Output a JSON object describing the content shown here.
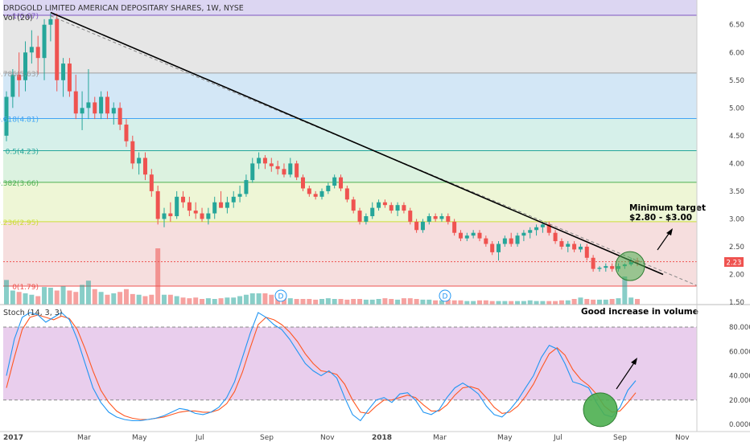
{
  "title": "DRDGOLD LIMITED AMERICAN DEPOSITARY SHARES, 1W, NYSE",
  "volume_label": "Vol (20)",
  "last_price_badge": "2.23",
  "annotations": {
    "target_line1": "Minimum target",
    "target_line2": "$2.80 - $3.00",
    "volume_note": "Good increase in volume"
  },
  "dividend_marker": "D",
  "colors": {
    "up": "#26a69a",
    "down": "#ef5350",
    "trendline": "#000000",
    "stoch_k": "#2196f3",
    "stoch_d": "#ff5722",
    "stoch_band": "#e1bee7",
    "highlight_circle": "#4caf50"
  },
  "chart_data": [
    {
      "type": "candlestick",
      "title": "DRDGOLD LIMITED AMERICAN DEPOSITARY SHARES, 1W, NYSE",
      "y_axis_ticks": [
        "6.50",
        "6.00",
        "5.50",
        "5.00",
        "4.50",
        "4.00",
        "3.50",
        "3.00",
        "2.50",
        "2.00",
        "1.50"
      ],
      "ylim": [
        1.5,
        6.9
      ],
      "x_axis_ticks": [
        "2017",
        "Mar",
        "May",
        "Jul",
        "Sep",
        "Nov",
        "2018",
        "Mar",
        "May",
        "Jul",
        "Sep",
        "Nov"
      ],
      "last_price": 2.23,
      "fibonacci_levels": [
        {
          "label": "1(6.67)",
          "value": 6.67
        },
        {
          "label": "0.786(5.63)",
          "value": 5.63
        },
        {
          "label": "0.618(4.81)",
          "value": 4.81
        },
        {
          "label": "0.5(4.23)",
          "value": 4.23
        },
        {
          "label": "0.382(3.66)",
          "value": 3.66
        },
        {
          "label": "0.236(2.95)",
          "value": 2.95
        },
        {
          "label": "0(1.79)",
          "value": 1.79
        }
      ],
      "candles": [
        [
          4.5,
          5.3,
          4.4,
          5.2
        ],
        [
          5.2,
          5.7,
          5.0,
          5.6
        ],
        [
          5.6,
          6.0,
          5.2,
          5.5
        ],
        [
          5.5,
          6.2,
          5.3,
          6.0
        ],
        [
          6.0,
          6.4,
          5.8,
          6.1
        ],
        [
          6.1,
          6.3,
          5.6,
          5.9
        ],
        [
          5.9,
          6.6,
          5.5,
          6.5
        ],
        [
          6.5,
          6.7,
          6.2,
          6.6
        ],
        [
          6.6,
          6.7,
          5.3,
          5.5
        ],
        [
          5.5,
          5.9,
          5.2,
          5.8
        ],
        [
          5.8,
          5.9,
          5.2,
          5.3
        ],
        [
          5.3,
          5.6,
          4.8,
          4.9
        ],
        [
          4.9,
          5.3,
          4.6,
          5.0
        ],
        [
          5.0,
          5.7,
          4.8,
          5.1
        ],
        [
          5.1,
          5.2,
          4.8,
          4.9
        ],
        [
          4.9,
          5.3,
          4.8,
          5.2
        ],
        [
          5.2,
          5.3,
          4.8,
          4.9
        ],
        [
          4.9,
          5.1,
          4.7,
          5.0
        ],
        [
          5.0,
          5.1,
          4.6,
          4.7
        ],
        [
          4.7,
          4.8,
          4.3,
          4.4
        ],
        [
          4.4,
          4.5,
          3.9,
          4.0
        ],
        [
          4.0,
          4.2,
          3.8,
          4.1
        ],
        [
          4.1,
          4.2,
          3.7,
          3.8
        ],
        [
          3.8,
          3.9,
          3.4,
          3.5
        ],
        [
          3.5,
          3.6,
          2.9,
          3.0
        ],
        [
          3.0,
          3.2,
          2.85,
          3.1
        ],
        [
          3.1,
          3.3,
          2.95,
          3.05
        ],
        [
          3.05,
          3.5,
          3.0,
          3.4
        ],
        [
          3.4,
          3.5,
          3.2,
          3.3
        ],
        [
          3.3,
          3.4,
          3.05,
          3.15
        ],
        [
          3.15,
          3.3,
          3.0,
          3.1
        ],
        [
          3.1,
          3.2,
          2.95,
          3.0
        ],
        [
          3.0,
          3.2,
          2.9,
          3.1
        ],
        [
          3.1,
          3.4,
          3.0,
          3.3
        ],
        [
          3.3,
          3.5,
          3.2,
          3.2
        ],
        [
          3.2,
          3.4,
          3.1,
          3.3
        ],
        [
          3.3,
          3.5,
          3.2,
          3.4
        ],
        [
          3.4,
          3.6,
          3.3,
          3.45
        ],
        [
          3.45,
          3.8,
          3.4,
          3.7
        ],
        [
          3.7,
          4.1,
          3.65,
          4.0
        ],
        [
          4.0,
          4.2,
          3.9,
          4.1
        ],
        [
          4.1,
          4.15,
          3.9,
          4.0
        ],
        [
          4.0,
          4.1,
          3.85,
          3.95
        ],
        [
          3.95,
          4.05,
          3.8,
          3.9
        ],
        [
          3.9,
          4.0,
          3.75,
          3.8
        ],
        [
          3.8,
          4.1,
          3.75,
          4.0
        ],
        [
          4.0,
          4.05,
          3.7,
          3.75
        ],
        [
          3.75,
          3.8,
          3.5,
          3.55
        ],
        [
          3.55,
          3.6,
          3.4,
          3.45
        ],
        [
          3.45,
          3.5,
          3.35,
          3.4
        ],
        [
          3.4,
          3.55,
          3.35,
          3.5
        ],
        [
          3.5,
          3.65,
          3.45,
          3.6
        ],
        [
          3.6,
          3.8,
          3.55,
          3.75
        ],
        [
          3.75,
          3.8,
          3.5,
          3.55
        ],
        [
          3.55,
          3.6,
          3.3,
          3.35
        ],
        [
          3.35,
          3.4,
          3.1,
          3.15
        ],
        [
          3.15,
          3.2,
          2.9,
          2.95
        ],
        [
          2.95,
          3.1,
          2.9,
          3.05
        ],
        [
          3.05,
          3.3,
          3.0,
          3.2
        ],
        [
          3.2,
          3.35,
          3.15,
          3.3
        ],
        [
          3.3,
          3.35,
          3.2,
          3.25
        ],
        [
          3.25,
          3.3,
          3.1,
          3.15
        ],
        [
          3.15,
          3.3,
          3.05,
          3.25
        ],
        [
          3.25,
          3.3,
          3.1,
          3.15
        ],
        [
          3.15,
          3.2,
          2.9,
          2.95
        ],
        [
          2.95,
          3.0,
          2.75,
          2.8
        ],
        [
          2.8,
          3.0,
          2.75,
          2.95
        ],
        [
          2.95,
          3.1,
          2.9,
          3.05
        ],
        [
          3.05,
          3.1,
          2.95,
          3.0
        ],
        [
          3.0,
          3.1,
          2.95,
          3.05
        ],
        [
          3.05,
          3.1,
          2.9,
          2.95
        ],
        [
          2.95,
          3.0,
          2.7,
          2.75
        ],
        [
          2.75,
          2.8,
          2.6,
          2.65
        ],
        [
          2.65,
          2.75,
          2.6,
          2.7
        ],
        [
          2.7,
          2.8,
          2.65,
          2.75
        ],
        [
          2.75,
          2.8,
          2.6,
          2.65
        ],
        [
          2.65,
          2.7,
          2.5,
          2.55
        ],
        [
          2.55,
          2.6,
          2.35,
          2.4
        ],
        [
          2.4,
          2.6,
          2.25,
          2.55
        ],
        [
          2.55,
          2.7,
          2.5,
          2.65
        ],
        [
          2.65,
          2.75,
          2.5,
          2.55
        ],
        [
          2.55,
          2.75,
          2.5,
          2.7
        ],
        [
          2.7,
          2.8,
          2.6,
          2.75
        ],
        [
          2.75,
          2.85,
          2.65,
          2.8
        ],
        [
          2.8,
          2.9,
          2.7,
          2.85
        ],
        [
          2.85,
          2.95,
          2.75,
          2.9
        ],
        [
          2.9,
          2.95,
          2.7,
          2.75
        ],
        [
          2.75,
          2.8,
          2.55,
          2.6
        ],
        [
          2.6,
          2.65,
          2.45,
          2.5
        ],
        [
          2.5,
          2.6,
          2.4,
          2.55
        ],
        [
          2.55,
          2.6,
          2.4,
          2.45
        ],
        [
          2.45,
          2.55,
          2.4,
          2.5
        ],
        [
          2.5,
          2.55,
          2.25,
          2.3
        ],
        [
          2.3,
          2.35,
          2.05,
          2.1
        ],
        [
          2.1,
          2.15,
          2.05,
          2.12
        ],
        [
          2.12,
          2.2,
          2.05,
          2.15
        ],
        [
          2.15,
          2.2,
          2.05,
          2.1
        ],
        [
          2.1,
          2.2,
          2.05,
          2.15
        ],
        [
          2.15,
          2.2,
          2.1,
          2.18
        ],
        [
          2.18,
          2.3,
          2.15,
          2.25
        ],
        [
          2.25,
          2.3,
          2.15,
          2.23
        ]
      ],
      "volume": [
        35,
        20,
        18,
        16,
        14,
        12,
        25,
        24,
        20,
        26,
        20,
        18,
        28,
        34,
        22,
        18,
        14,
        16,
        18,
        22,
        15,
        14,
        12,
        14,
        80,
        14,
        14,
        12,
        10,
        9,
        10,
        8,
        9,
        8,
        9,
        10,
        10,
        12,
        14,
        16,
        16,
        16,
        14,
        12,
        10,
        9,
        8,
        8,
        8,
        7,
        8,
        9,
        8,
        8,
        7,
        8,
        8,
        7,
        7,
        8,
        9,
        8,
        7,
        9,
        9,
        8,
        7,
        7,
        6,
        6,
        7,
        6,
        6,
        5,
        5,
        6,
        6,
        5,
        5,
        5,
        5,
        5,
        5,
        6,
        5,
        5,
        5,
        5,
        6,
        6,
        8,
        10,
        8,
        7,
        7,
        7,
        8,
        9,
        40,
        10,
        8
      ]
    },
    {
      "type": "line",
      "title": "Stoch (14, 3, 3)",
      "y_axis_ticks": [
        "80.0000",
        "60.0000",
        "40.0000",
        "20.0000",
        "0.0000"
      ],
      "ylim": [
        -5,
        100
      ],
      "bands": [
        20,
        80
      ],
      "series": [
        {
          "name": "%K",
          "values": [
            40,
            70,
            88,
            92,
            90,
            84,
            88,
            92,
            86,
            70,
            50,
            30,
            18,
            10,
            6,
            4,
            3,
            3,
            4,
            5,
            7,
            10,
            13,
            12,
            9,
            8,
            10,
            14,
            22,
            35,
            55,
            75,
            92,
            88,
            82,
            78,
            70,
            60,
            50,
            44,
            40,
            44,
            38,
            22,
            8,
            3,
            12,
            20,
            22,
            18,
            25,
            26,
            20,
            10,
            8,
            12,
            22,
            30,
            34,
            30,
            25,
            15,
            8,
            6,
            12,
            20,
            30,
            40,
            55,
            65,
            62,
            50,
            35,
            33,
            30,
            18,
            8,
            6,
            14,
            28,
            36
          ]
        },
        {
          "name": "%D",
          "values": [
            30,
            55,
            78,
            88,
            90,
            88,
            86,
            89,
            87,
            78,
            62,
            44,
            28,
            18,
            11,
            7,
            5,
            4,
            4,
            5,
            6,
            8,
            10,
            11,
            11,
            10,
            10,
            12,
            17,
            27,
            43,
            63,
            82,
            88,
            86,
            82,
            76,
            68,
            58,
            50,
            44,
            43,
            41,
            33,
            20,
            10,
            9,
            15,
            20,
            20,
            22,
            24,
            22,
            16,
            11,
            11,
            16,
            24,
            30,
            31,
            29,
            22,
            14,
            9,
            10,
            15,
            23,
            33,
            46,
            58,
            63,
            57,
            45,
            37,
            32,
            25,
            15,
            10,
            11,
            18,
            26
          ]
        }
      ]
    }
  ]
}
